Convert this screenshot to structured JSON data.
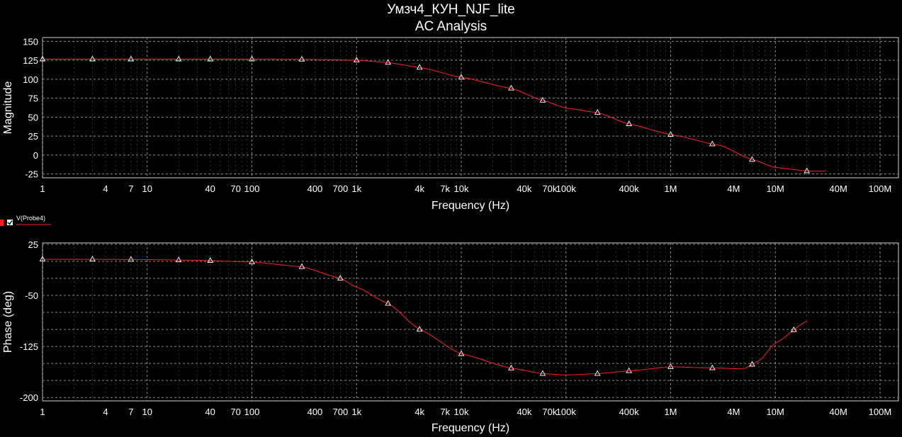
{
  "title": [
    "Умзч4_КУН_NJF_lite",
    "AC Analysis"
  ],
  "colors": {
    "background": "#000000",
    "grid": "#9a9a9a",
    "trace": "#ff2020",
    "marker": "#ffffff",
    "legend_marker": "#ff2020"
  },
  "legend": {
    "label": "V(Probe4)",
    "checked": true
  },
  "chart_data": [
    {
      "type": "line",
      "xscale": "log",
      "xlabel": "Frequency (Hz)",
      "ylabel": "Magnitude",
      "xlim": [
        1,
        150000000
      ],
      "ylim": [
        -30,
        155
      ],
      "yticks": [
        150,
        125,
        100,
        75,
        50,
        25,
        0,
        -25
      ],
      "xticks": [
        {
          "v": 1,
          "t": "1"
        },
        {
          "v": 4,
          "t": "4"
        },
        {
          "v": 7,
          "t": "7"
        },
        {
          "v": 10,
          "t": "10"
        },
        {
          "v": 40,
          "t": "40"
        },
        {
          "v": 70,
          "t": "70"
        },
        {
          "v": 100,
          "t": "100"
        },
        {
          "v": 400,
          "t": "400"
        },
        {
          "v": 700,
          "t": "700"
        },
        {
          "v": 1000,
          "t": "1k"
        },
        {
          "v": 4000,
          "t": "4k"
        },
        {
          "v": 7000,
          "t": "7k"
        },
        {
          "v": 10000,
          "t": "10k"
        },
        {
          "v": 40000,
          "t": "40k"
        },
        {
          "v": 70000,
          "t": "70k"
        },
        {
          "v": 100000,
          "t": "100k"
        },
        {
          "v": 400000,
          "t": "400k"
        },
        {
          "v": 1000000,
          "t": "1M"
        },
        {
          "v": 4000000,
          "t": "4M"
        },
        {
          "v": 10000000,
          "t": "10M"
        },
        {
          "v": 40000000,
          "t": "40M"
        },
        {
          "v": 100000000,
          "t": "100M"
        }
      ],
      "grid": true,
      "series": [
        {
          "x": [
            1,
            3,
            10,
            30,
            100,
            300,
            700,
            1000,
            2000,
            4000,
            10000,
            30000,
            60000,
            100000,
            200000,
            400000,
            1000000,
            3000000,
            6000000,
            10000000,
            20000000,
            30000000
          ],
          "y": [
            126.5,
            126.5,
            126.5,
            126.5,
            126.5,
            126.2,
            125.5,
            125,
            122,
            115.5,
            102.5,
            88,
            72,
            62,
            56,
            41,
            27,
            12.5,
            -6,
            -16.5,
            -21,
            -21.5
          ],
          "markers": [
            1,
            3,
            7,
            20,
            40,
            100,
            300,
            1000,
            2000,
            4000,
            10000,
            30000,
            60000,
            200000,
            400000,
            1000000,
            2500000,
            6000000,
            20000000
          ]
        }
      ]
    },
    {
      "type": "line",
      "xscale": "log",
      "xlabel": "Frequency (Hz)",
      "ylabel": "Phase (deg)",
      "xlim": [
        1,
        150000000
      ],
      "ylim": [
        -205,
        27
      ],
      "yticks": [
        25,
        -50,
        -125,
        -200
      ],
      "ygrid": [
        25,
        0,
        -25,
        -50,
        -75,
        -100,
        -125,
        -150,
        -175,
        -200
      ],
      "xticks": [
        {
          "v": 1,
          "t": "1"
        },
        {
          "v": 4,
          "t": "4"
        },
        {
          "v": 7,
          "t": "7"
        },
        {
          "v": 10,
          "t": "10"
        },
        {
          "v": 40,
          "t": "40"
        },
        {
          "v": 70,
          "t": "70"
        },
        {
          "v": 100,
          "t": "100"
        },
        {
          "v": 400,
          "t": "400"
        },
        {
          "v": 700,
          "t": "700"
        },
        {
          "v": 1000,
          "t": "1k"
        },
        {
          "v": 4000,
          "t": "4k"
        },
        {
          "v": 7000,
          "t": "7k"
        },
        {
          "v": 10000,
          "t": "10k"
        },
        {
          "v": 40000,
          "t": "40k"
        },
        {
          "v": 70000,
          "t": "70k"
        },
        {
          "v": 100000,
          "t": "100k"
        },
        {
          "v": 400000,
          "t": "400k"
        },
        {
          "v": 1000000,
          "t": "1M"
        },
        {
          "v": 4000000,
          "t": "4M"
        },
        {
          "v": 10000000,
          "t": "10M"
        },
        {
          "v": 40000000,
          "t": "40M"
        },
        {
          "v": 100000000,
          "t": "100M"
        }
      ],
      "grid": true,
      "series": [
        {
          "x": [
            1,
            3,
            10,
            30,
            100,
            300,
            700,
            1000,
            2000,
            4000,
            10000,
            30000,
            60000,
            100000,
            200000,
            400000,
            1000000,
            3000000,
            5000000,
            7000000,
            10000000,
            20000000
          ],
          "y": [
            3,
            3,
            2.5,
            1.5,
            -1,
            -8,
            -25,
            -38,
            -62,
            -100,
            -136,
            -157,
            -165,
            -167,
            -165,
            -161,
            -155,
            -157,
            -158,
            -146,
            -120,
            -88
          ],
          "markers": [
            1,
            3,
            7,
            20,
            40,
            100,
            300,
            700,
            2000,
            4000,
            10000,
            30000,
            60000,
            200000,
            400000,
            1000000,
            2500000,
            6000000,
            15000000
          ]
        }
      ]
    }
  ]
}
